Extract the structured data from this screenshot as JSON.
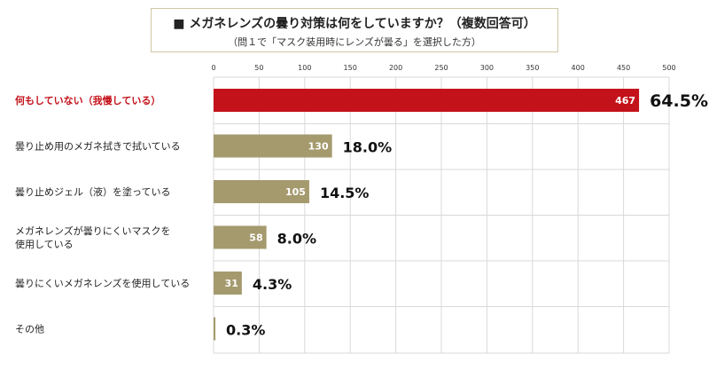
{
  "chart_data": {
    "type": "bar",
    "orientation": "horizontal",
    "title": "■ メガネレンズの曇り対策は何をしていますか？（複数回答可）",
    "subtitle": "（問１で「マスク装用時にレンズが曇る」を選択した方）",
    "categories": [
      "何もしていない（我慢している）",
      "曇り止め用のメガネ拭きで拭いている",
      "曇り止めジェル（液）を塗っている",
      "メガネレンズが曇りにくいマスクを使用している",
      "曇りにくいメガネレンズを使用している",
      "その他"
    ],
    "category_lines": [
      [
        "何もしていない（我慢している）"
      ],
      [
        "曇り止め用のメガネ拭きで拭いている"
      ],
      [
        "曇り止めジェル（液）を塗っている"
      ],
      [
        "メガネレンズが曇りにくいマスクを",
        "使用している"
      ],
      [
        "曇りにくいメガネレンズを使用している"
      ],
      [
        "その他"
      ]
    ],
    "values": [
      467,
      130,
      105,
      58,
      31,
      2
    ],
    "value_labels": [
      "467",
      "130",
      "105",
      "58",
      "31",
      ""
    ],
    "percent_labels": [
      "64.5%",
      "18.0%",
      "14.5%",
      "8.0%",
      "4.3%",
      "0.3%"
    ],
    "xlim": [
      0,
      500
    ],
    "xticks": [
      0,
      50,
      100,
      150,
      200,
      250,
      300,
      350,
      400,
      450,
      500
    ],
    "grid": true,
    "highlight_index": 0,
    "colors": {
      "highlight_bar": "#c4121a",
      "bar": "#a59a6e",
      "highlight_label": "#c4121a",
      "label": "#222222",
      "grid": "#d9d9d9",
      "value_text": "#ffffff"
    }
  }
}
